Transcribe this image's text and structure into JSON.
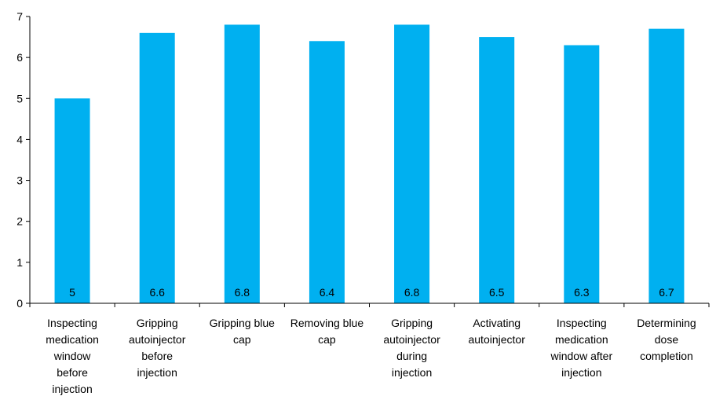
{
  "chart_data": {
    "type": "bar",
    "categories": [
      "Inspecting medication window before injection",
      "Gripping autoinjector before injection",
      "Gripping blue cap",
      "Removing blue cap",
      "Gripping autoinjector during injection",
      "Activating autoinjector",
      "Inspecting medication window after injection",
      "Determining dose completion"
    ],
    "category_lines": [
      [
        "Inspecting",
        "medication",
        "window",
        "before",
        "injection"
      ],
      [
        "Gripping",
        "autoinjector",
        "before",
        "injection"
      ],
      [
        "Gripping blue",
        "cap"
      ],
      [
        "Removing blue",
        "cap"
      ],
      [
        "Gripping",
        "autoinjector",
        "during",
        "injection"
      ],
      [
        "Activating",
        "autoinjector"
      ],
      [
        "Inspecting",
        "medication",
        "window after",
        "injection"
      ],
      [
        "Determining",
        "dose",
        "completion"
      ]
    ],
    "values": [
      5,
      6.6,
      6.8,
      6.4,
      6.8,
      6.5,
      6.3,
      6.7
    ],
    "data_labels": [
      "5",
      "6.6",
      "6.8",
      "6.4",
      "6.8",
      "6.5",
      "6.3",
      "6.7"
    ],
    "ylim": [
      0,
      7
    ],
    "yticks": [
      0,
      1,
      2,
      3,
      4,
      5,
      6,
      7
    ],
    "ytick_labels": [
      "0",
      "1",
      "2",
      "3",
      "4",
      "5",
      "6",
      "7"
    ],
    "bar_color": "#00B0F0",
    "axis_color": "#000000",
    "grid": false,
    "legend": false
  }
}
